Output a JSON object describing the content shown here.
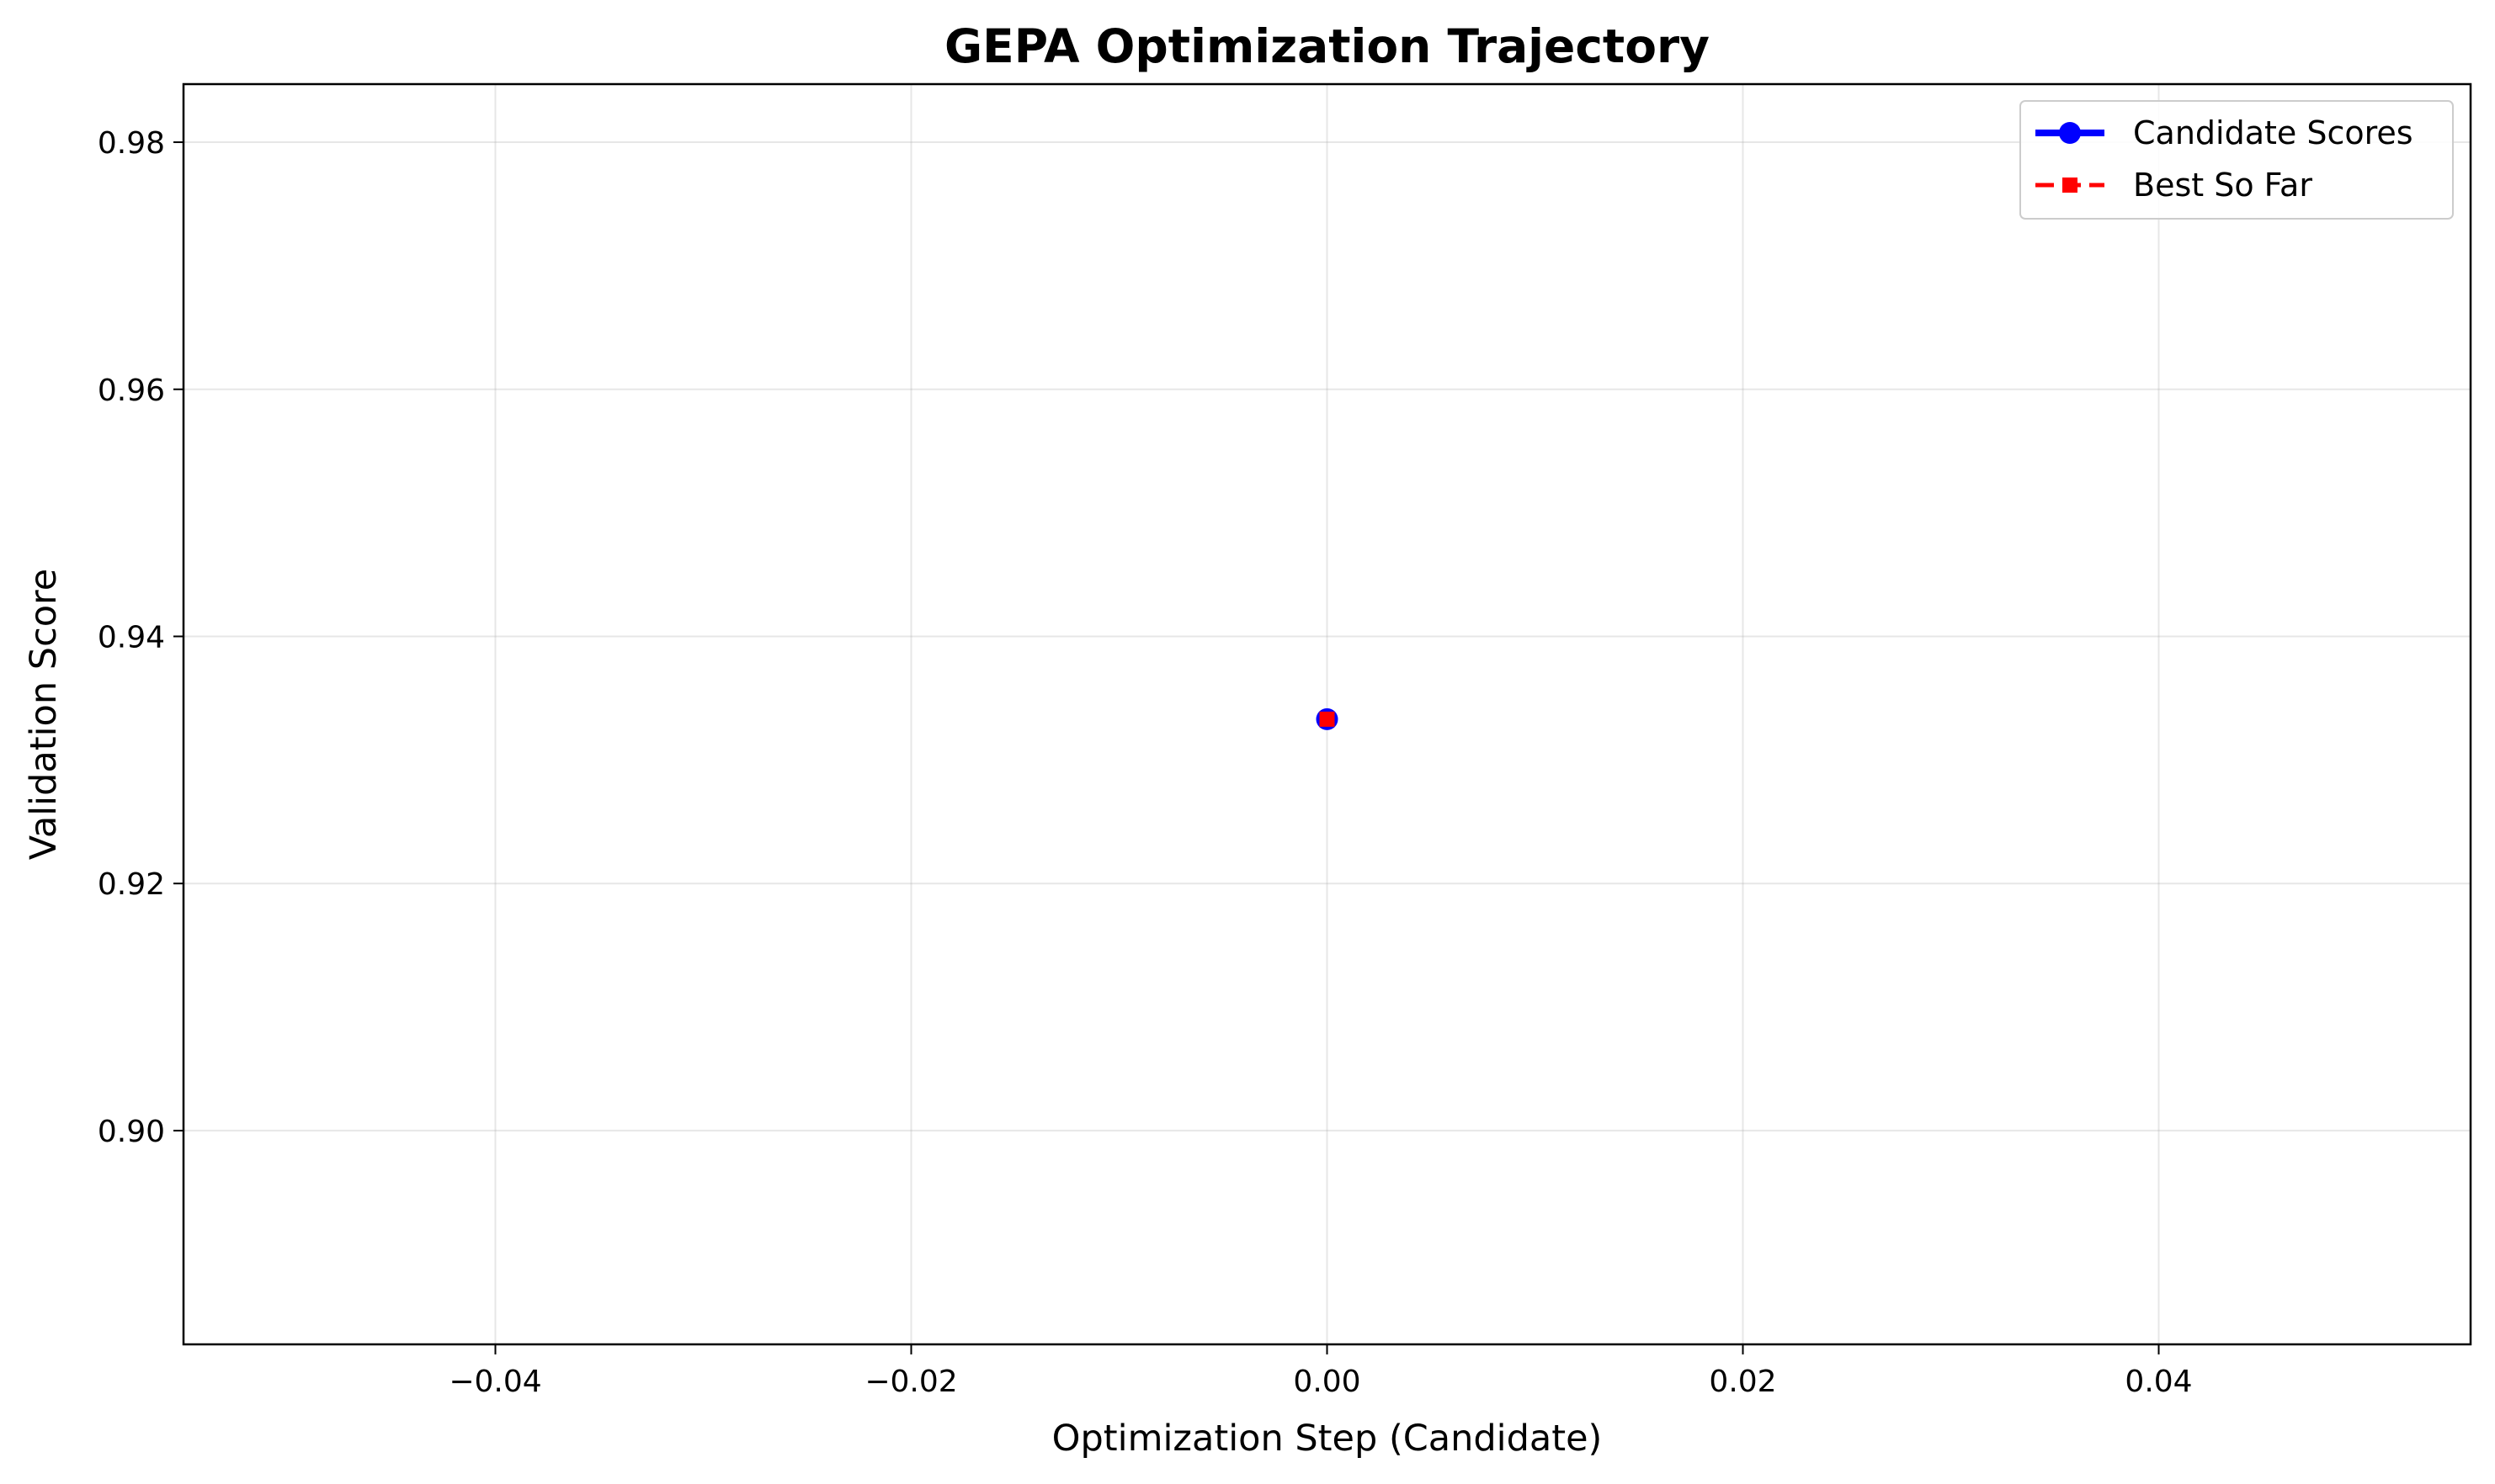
{
  "chart_data": {
    "type": "line",
    "title": "GEPA Optimization Trajectory",
    "xlabel": "Optimization Step (Candidate)",
    "ylabel": "Validation Score",
    "xlim": [
      -0.055,
      0.055
    ],
    "ylim": [
      0.8827,
      0.9847
    ],
    "xticks": [
      -0.04,
      -0.02,
      0.0,
      0.02,
      0.04
    ],
    "xtick_labels": [
      "−0.04",
      "−0.02",
      "0.00",
      "0.02",
      "0.04"
    ],
    "yticks": [
      0.9,
      0.92,
      0.94,
      0.96,
      0.98
    ],
    "ytick_labels": [
      "0.90",
      "0.92",
      "0.94",
      "0.96",
      "0.98"
    ],
    "grid": true,
    "legend_position": "top-right",
    "series": [
      {
        "name": "Candidate Scores",
        "color": "#0000ff",
        "marker": "circle",
        "x": [
          0
        ],
        "y": [
          0.9333
        ]
      },
      {
        "name": "Best So Far",
        "color": "#ff0000",
        "marker": "square",
        "linestyle": "dashed",
        "x": [
          0
        ],
        "y": [
          0.9333
        ]
      }
    ]
  }
}
